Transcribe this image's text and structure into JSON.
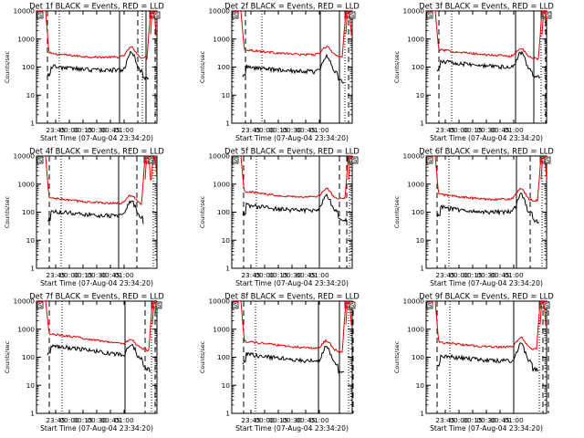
{
  "colors": {
    "events": "#000000",
    "lld": "#e00000",
    "axes": "#000000",
    "background": "#ffffff"
  },
  "chart_data": [
    {
      "title": "Det 1f BLACK = Events, RED = LLD",
      "mark_labels": [
        "S",
        "D",
        "S"
      ],
      "ylabel": "Counts/sec",
      "xlabel": "Start Time (07-Aug-04 23:34:20)",
      "y_scale": "log",
      "ylim": [
        1,
        10000
      ],
      "ytick_labels": [
        "1",
        "10",
        "100",
        "1000",
        "10000"
      ],
      "xtick_labels": [
        "23:45",
        "00:00",
        "00:15",
        "00:30",
        "00:45",
        "01:00"
      ]
    },
    {
      "title": "Det 2f BLACK = Events, RED = LLD",
      "mark_labels": [
        "S",
        "D",
        "S"
      ],
      "ylabel": "Counts/sec",
      "xlabel": "Start Time (07-Aug-04 23:34:20)",
      "y_scale": "log",
      "ylim": [
        1,
        10000
      ],
      "ytick_labels": [
        "1",
        "10",
        "100",
        "1000",
        "10000"
      ],
      "xtick_labels": [
        "23:45",
        "00:00",
        "00:15",
        "00:30",
        "00:45",
        "01:00"
      ]
    },
    {
      "title": "Det 3f BLACK = Events, RED = LLD",
      "mark_labels": [
        "S",
        "D",
        "S"
      ],
      "ylabel": "Counts/sec",
      "xlabel": "Start Time (07-Aug-04 23:34:20)",
      "y_scale": "log",
      "ylim": [
        1,
        10000
      ],
      "ytick_labels": [
        "1",
        "10",
        "100",
        "1000",
        "10000"
      ],
      "xtick_labels": [
        "23:45",
        "00:00",
        "00:15",
        "00:30",
        "00:45",
        "01:00"
      ]
    },
    {
      "title": "Det 4f BLACK = Events, RED = LLD",
      "mark_labels": [
        "S",
        "D",
        "S"
      ],
      "ylabel": "Counts/sec",
      "xlabel": "Start Time (07-Aug-04 23:34:20)",
      "y_scale": "log",
      "ylim": [
        1,
        10000
      ],
      "ytick_labels": [
        "1",
        "10",
        "100",
        "1000",
        "10000"
      ],
      "xtick_labels": [
        "23:45",
        "00:00",
        "00:15",
        "00:30",
        "00:45",
        "01:00"
      ]
    },
    {
      "title": "Det 5f BLACK = Events, RED = LLD",
      "mark_labels": [
        "S",
        "D",
        "S"
      ],
      "ylabel": "Counts/sec",
      "xlabel": "Start Time (07-Aug-04 23:34:20)",
      "y_scale": "log",
      "ylim": [
        1,
        10000
      ],
      "ytick_labels": [
        "1",
        "10",
        "100",
        "1000",
        "10000"
      ],
      "xtick_labels": [
        "23:45",
        "00:00",
        "00:15",
        "00:30",
        "00:45",
        "01:00"
      ]
    },
    {
      "title": "Det 6f BLACK = Events, RED = LLD",
      "mark_labels": [
        "S",
        "D",
        "S"
      ],
      "ylabel": "Counts/sec",
      "xlabel": "Start Time (07-Aug-04 23:34:20)",
      "y_scale": "log",
      "ylim": [
        1,
        10000
      ],
      "ytick_labels": [
        "1",
        "10",
        "100",
        "1000",
        "10000"
      ],
      "xtick_labels": [
        "23:45",
        "00:00",
        "00:15",
        "00:30",
        "00:45",
        "01:00"
      ]
    },
    {
      "title": "Det 7f BLACK = Events, RED = LLD",
      "mark_labels": [
        "S",
        "D",
        "S"
      ],
      "ylabel": "Counts/sec",
      "xlabel": "Start Time (07-Aug-04 23:34:20)",
      "y_scale": "log",
      "ylim": [
        1,
        10000
      ],
      "ytick_labels": [
        "1",
        "10",
        "100",
        "1000",
        "10000"
      ],
      "xtick_labels": [
        "23:45",
        "00:00",
        "00:15",
        "00:30",
        "00:45",
        "01:00"
      ]
    },
    {
      "title": "Det 8f BLACK = Events, RED = LLD",
      "mark_labels": [
        "S",
        "D",
        "S"
      ],
      "ylabel": "Counts/sec",
      "xlabel": "Start Time (07-Aug-04 23:34:20)",
      "y_scale": "log",
      "ylim": [
        1,
        10000
      ],
      "ytick_labels": [
        "1",
        "10",
        "100",
        "1000",
        "10000"
      ],
      "xtick_labels": [
        "23:45",
        "00:00",
        "00:15",
        "00:30",
        "00:45",
        "01:00"
      ]
    },
    {
      "title": "Det 9f BLACK = Events, RED = LLD",
      "mark_labels": [
        "S",
        "D",
        "S"
      ],
      "ylabel": "Counts/sec",
      "xlabel": "Start Time (07-Aug-04 23:34:20)",
      "y_scale": "log",
      "ylim": [
        1,
        10000
      ],
      "ytick_labels": [
        "1",
        "10",
        "100",
        "1000",
        "10000"
      ],
      "xtick_labels": [
        "23:45",
        "00:00",
        "00:15",
        "00:30",
        "00:45",
        "01:00"
      ]
    }
  ]
}
